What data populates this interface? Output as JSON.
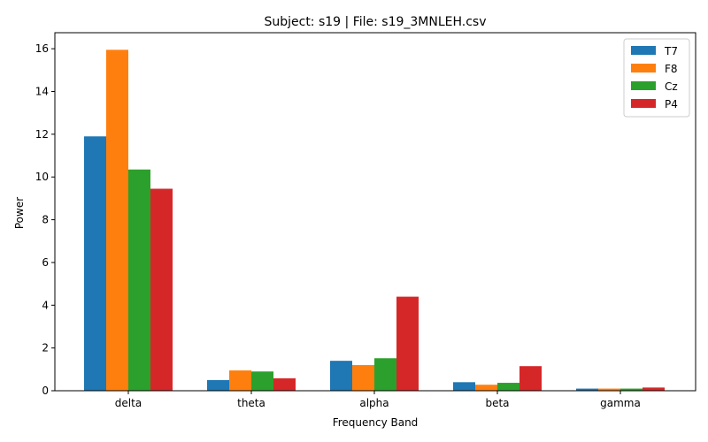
{
  "chart_data": {
    "type": "bar",
    "title": "Subject: s19 | File: s19_3MNLEH.csv",
    "xlabel": "Frequency Band",
    "ylabel": "Power",
    "categories": [
      "delta",
      "theta",
      "alpha",
      "beta",
      "gamma"
    ],
    "ylim": [
      0,
      16.75
    ],
    "yticks": [
      0,
      2,
      4,
      6,
      8,
      10,
      12,
      14,
      16
    ],
    "legend_position": "top-right",
    "grid": false,
    "series": [
      {
        "name": "T7",
        "color": "#1f77b4",
        "values": [
          11.9,
          0.5,
          1.4,
          0.4,
          0.1
        ]
      },
      {
        "name": "F8",
        "color": "#ff7f0e",
        "values": [
          15.95,
          0.95,
          1.2,
          0.28,
          0.1
        ]
      },
      {
        "name": "Cz",
        "color": "#2ca02c",
        "values": [
          10.35,
          0.9,
          1.52,
          0.37,
          0.1
        ]
      },
      {
        "name": "P4",
        "color": "#d62728",
        "values": [
          9.45,
          0.58,
          4.4,
          1.15,
          0.15
        ]
      }
    ]
  }
}
